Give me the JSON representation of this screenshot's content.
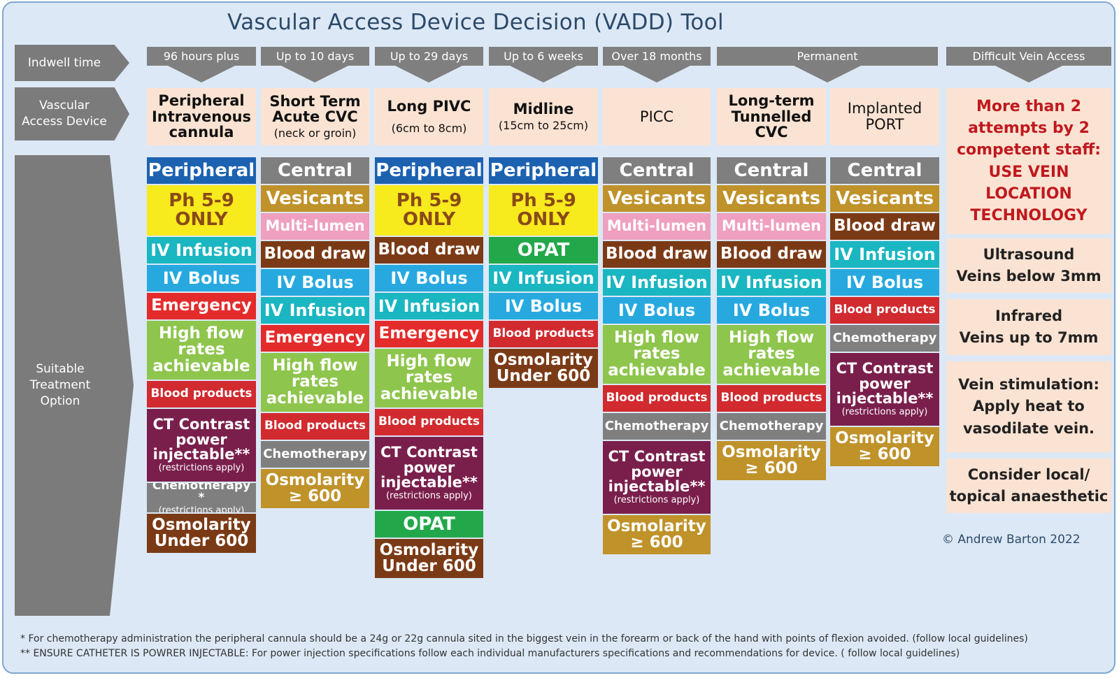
{
  "title": "Vascular Access Device Decision  (VADD) Tool",
  "row_labels": {
    "indwell": "Indwell time",
    "device": "Vascular\nAccess Device",
    "treatment": "Suitable\nTreatment\nOption"
  },
  "indwell_headers": [
    "96 hours plus",
    "Up to 10 days",
    "Up to 29 days",
    "Up to 6 weeks",
    "Over 18 months",
    "Permanent",
    "Difficult Vein Access"
  ],
  "devices": [
    {
      "name": "Peripheral\nIntravenous\ncannula",
      "sub": ""
    },
    {
      "name": "Short Term\nAcute CVC",
      "sub": "(neck or groin)"
    },
    {
      "name": "Long PIVC",
      "sub": "(6cm to 8cm)"
    },
    {
      "name": "Midline",
      "sub": "(15cm to 25cm)"
    },
    {
      "name": "PICC",
      "sub": ""
    },
    {
      "name": "Long-term\nTunnelled\nCVC",
      "sub": ""
    },
    {
      "name": "Implanted\nPORT",
      "sub": ""
    }
  ],
  "columns": [
    [
      {
        "text": "Peripheral",
        "note": "",
        "bg": "#1d62b0",
        "fg": "#ffffff"
      },
      {
        "text": "Ph 5-9\nONLY",
        "note": "",
        "bg": "#f7ea1d",
        "fg": "#8a4a18"
      },
      {
        "text": "IV Infusion",
        "note": "",
        "bg": "#1ab6c1",
        "fg": "#ffffff"
      },
      {
        "text": "IV Bolus",
        "note": "",
        "bg": "#27a9e0",
        "fg": "#ffffff"
      },
      {
        "text": "Emergency",
        "note": "",
        "bg": "#e42b2b",
        "fg": "#ffffff"
      },
      {
        "text": "High flow\nrates\nachievable",
        "note": "",
        "bg": "#8ec54d",
        "fg": "#ffffff"
      },
      {
        "text": "Blood products",
        "note": "",
        "bg": "#d12a2f",
        "fg": "#ffffff"
      },
      {
        "text": "CT Contrast\npower\ninjectable**",
        "note": "(restrictions apply)",
        "bg": "#7a1f4c",
        "fg": "#ffffff"
      },
      {
        "text": "Chemotherapy *",
        "note": "(restrictions apply)",
        "bg": "#7f7f7f",
        "fg": "#ffffff"
      },
      {
        "text": "Osmolarity\nUnder 600",
        "note": "",
        "bg": "#7b3a16",
        "fg": "#ffffff"
      }
    ],
    [
      {
        "text": "Central",
        "note": "",
        "bg": "#7f7f7f",
        "fg": "#ffffff"
      },
      {
        "text": "Vesicants",
        "note": "",
        "bg": "#bf922a",
        "fg": "#ffffff"
      },
      {
        "text": "Multi-lumen",
        "note": "",
        "bg": "#ef9fbf",
        "fg": "#ffffff"
      },
      {
        "text": "Blood draw",
        "note": "",
        "bg": "#7b3a16",
        "fg": "#ffffff"
      },
      {
        "text": "IV Bolus",
        "note": "",
        "bg": "#27a9e0",
        "fg": "#ffffff"
      },
      {
        "text": "IV Infusion",
        "note": "",
        "bg": "#1ab6c1",
        "fg": "#ffffff"
      },
      {
        "text": "Emergency",
        "note": "",
        "bg": "#e42b2b",
        "fg": "#ffffff"
      },
      {
        "text": "High flow\nrates\nachievable",
        "note": "",
        "bg": "#8ec54d",
        "fg": "#ffffff"
      },
      {
        "text": "Blood products",
        "note": "",
        "bg": "#d12a2f",
        "fg": "#ffffff"
      },
      {
        "text": "Chemotherapy",
        "note": "",
        "bg": "#7f7f7f",
        "fg": "#ffffff"
      },
      {
        "text": "Osmolarity\n≥ 600",
        "note": "",
        "bg": "#bf922a",
        "fg": "#ffffff"
      }
    ],
    [
      {
        "text": "Peripheral",
        "note": "",
        "bg": "#1d62b0",
        "fg": "#ffffff"
      },
      {
        "text": "Ph 5-9\nONLY",
        "note": "",
        "bg": "#f7ea1d",
        "fg": "#8a4a18"
      },
      {
        "text": "Blood draw",
        "note": "",
        "bg": "#7b3a16",
        "fg": "#ffffff"
      },
      {
        "text": "IV Bolus",
        "note": "",
        "bg": "#27a9e0",
        "fg": "#ffffff"
      },
      {
        "text": "IV Infusion",
        "note": "",
        "bg": "#1ab6c1",
        "fg": "#ffffff"
      },
      {
        "text": "Emergency",
        "note": "",
        "bg": "#e42b2b",
        "fg": "#ffffff"
      },
      {
        "text": "High flow\nrates\nachievable",
        "note": "",
        "bg": "#8ec54d",
        "fg": "#ffffff"
      },
      {
        "text": "Blood products",
        "note": "",
        "bg": "#d12a2f",
        "fg": "#ffffff"
      },
      {
        "text": "CT Contrast\npower\ninjectable**",
        "note": "(restrictions apply)",
        "bg": "#7a1f4c",
        "fg": "#ffffff"
      },
      {
        "text": "OPAT",
        "note": "",
        "bg": "#22a84a",
        "fg": "#ffffff"
      },
      {
        "text": "Osmolarity\nUnder 600",
        "note": "",
        "bg": "#7b3a16",
        "fg": "#ffffff"
      }
    ],
    [
      {
        "text": "Peripheral",
        "note": "",
        "bg": "#1d62b0",
        "fg": "#ffffff"
      },
      {
        "text": "Ph 5-9\nONLY",
        "note": "",
        "bg": "#f7ea1d",
        "fg": "#8a4a18"
      },
      {
        "text": "OPAT",
        "note": "",
        "bg": "#22a84a",
        "fg": "#ffffff"
      },
      {
        "text": "IV Infusion",
        "note": "",
        "bg": "#1ab6c1",
        "fg": "#ffffff"
      },
      {
        "text": "IV Bolus",
        "note": "",
        "bg": "#27a9e0",
        "fg": "#ffffff"
      },
      {
        "text": "Blood products",
        "note": "",
        "bg": "#d12a2f",
        "fg": "#ffffff"
      },
      {
        "text": "Osmolarity\nUnder 600",
        "note": "",
        "bg": "#7b3a16",
        "fg": "#ffffff"
      }
    ],
    [
      {
        "text": "Central",
        "note": "",
        "bg": "#7f7f7f",
        "fg": "#ffffff"
      },
      {
        "text": "Vesicants",
        "note": "",
        "bg": "#bf922a",
        "fg": "#ffffff"
      },
      {
        "text": "Multi-lumen",
        "note": "",
        "bg": "#ef9fbf",
        "fg": "#ffffff"
      },
      {
        "text": "Blood draw",
        "note": "",
        "bg": "#7b3a16",
        "fg": "#ffffff"
      },
      {
        "text": "IV Infusion",
        "note": "",
        "bg": "#1ab6c1",
        "fg": "#ffffff"
      },
      {
        "text": "IV Bolus",
        "note": "",
        "bg": "#27a9e0",
        "fg": "#ffffff"
      },
      {
        "text": "High flow\nrates\nachievable",
        "note": "",
        "bg": "#8ec54d",
        "fg": "#ffffff"
      },
      {
        "text": "Blood products",
        "note": "",
        "bg": "#d12a2f",
        "fg": "#ffffff"
      },
      {
        "text": "Chemotherapy",
        "note": "",
        "bg": "#7f7f7f",
        "fg": "#ffffff"
      },
      {
        "text": "CT Contrast\npower\ninjectable**",
        "note": "(restrictions apply)",
        "bg": "#7a1f4c",
        "fg": "#ffffff"
      },
      {
        "text": "Osmolarity\n≥ 600",
        "note": "",
        "bg": "#bf922a",
        "fg": "#ffffff"
      }
    ],
    [
      {
        "text": "Central",
        "note": "",
        "bg": "#7f7f7f",
        "fg": "#ffffff"
      },
      {
        "text": "Vesicants",
        "note": "",
        "bg": "#bf922a",
        "fg": "#ffffff"
      },
      {
        "text": "Multi-lumen",
        "note": "",
        "bg": "#ef9fbf",
        "fg": "#ffffff"
      },
      {
        "text": "Blood draw",
        "note": "",
        "bg": "#7b3a16",
        "fg": "#ffffff"
      },
      {
        "text": "IV Infusion",
        "note": "",
        "bg": "#1ab6c1",
        "fg": "#ffffff"
      },
      {
        "text": "IV Bolus",
        "note": "",
        "bg": "#27a9e0",
        "fg": "#ffffff"
      },
      {
        "text": "High flow\nrates\nachievable",
        "note": "",
        "bg": "#8ec54d",
        "fg": "#ffffff"
      },
      {
        "text": "Blood products",
        "note": "",
        "bg": "#d12a2f",
        "fg": "#ffffff"
      },
      {
        "text": "Chemotherapy",
        "note": "",
        "bg": "#7f7f7f",
        "fg": "#ffffff"
      },
      {
        "text": "Osmolarity\n≥ 600",
        "note": "",
        "bg": "#bf922a",
        "fg": "#ffffff"
      }
    ],
    [
      {
        "text": "Central",
        "note": "",
        "bg": "#7f7f7f",
        "fg": "#ffffff"
      },
      {
        "text": "Vesicants",
        "note": "",
        "bg": "#bf922a",
        "fg": "#ffffff"
      },
      {
        "text": "Blood draw",
        "note": "",
        "bg": "#7b3a16",
        "fg": "#ffffff"
      },
      {
        "text": "IV Infusion",
        "note": "",
        "bg": "#1ab6c1",
        "fg": "#ffffff"
      },
      {
        "text": "IV Bolus",
        "note": "",
        "bg": "#27a9e0",
        "fg": "#ffffff"
      },
      {
        "text": "Blood products",
        "note": "",
        "bg": "#d12a2f",
        "fg": "#ffffff"
      },
      {
        "text": "Chemotherapy",
        "note": "",
        "bg": "#7f7f7f",
        "fg": "#ffffff"
      },
      {
        "text": "CT Contrast\npower\ninjectable**",
        "note": "(restrictions apply)",
        "bg": "#7a1f4c",
        "fg": "#ffffff"
      },
      {
        "text": "Osmolarity\n≥ 600",
        "note": "",
        "bg": "#bf922a",
        "fg": "#ffffff"
      }
    ]
  ],
  "difficult_vein_access": {
    "warning": "More than 2\nattempts by 2\ncompetent staff:\nUSE VEIN\nLOCATION\nTECHNOLOGY",
    "ultrasound": "Ultrasound\nVeins below 3mm",
    "infrared": "Infrared\nVeins up to 7mm",
    "stimulation": "Vein stimulation:\nApply heat to\nvasodilate vein.",
    "anaesthetic": "Consider local/\ntopical anaesthetic"
  },
  "copyright": "© Andrew Barton 2022",
  "footnotes": [
    "* For chemotherapy administration the peripheral cannula should be a 24g or 22g cannula sited in the biggest vein in the forearm or back of the hand with points of flexion avoided.  (follow local guidelines)",
    "** ENSURE CATHETER IS POWRER INJECTABLE: For power injection specifications follow each individual manufacturers  specifications and recommendations for device. ( follow local guidelines)"
  ]
}
